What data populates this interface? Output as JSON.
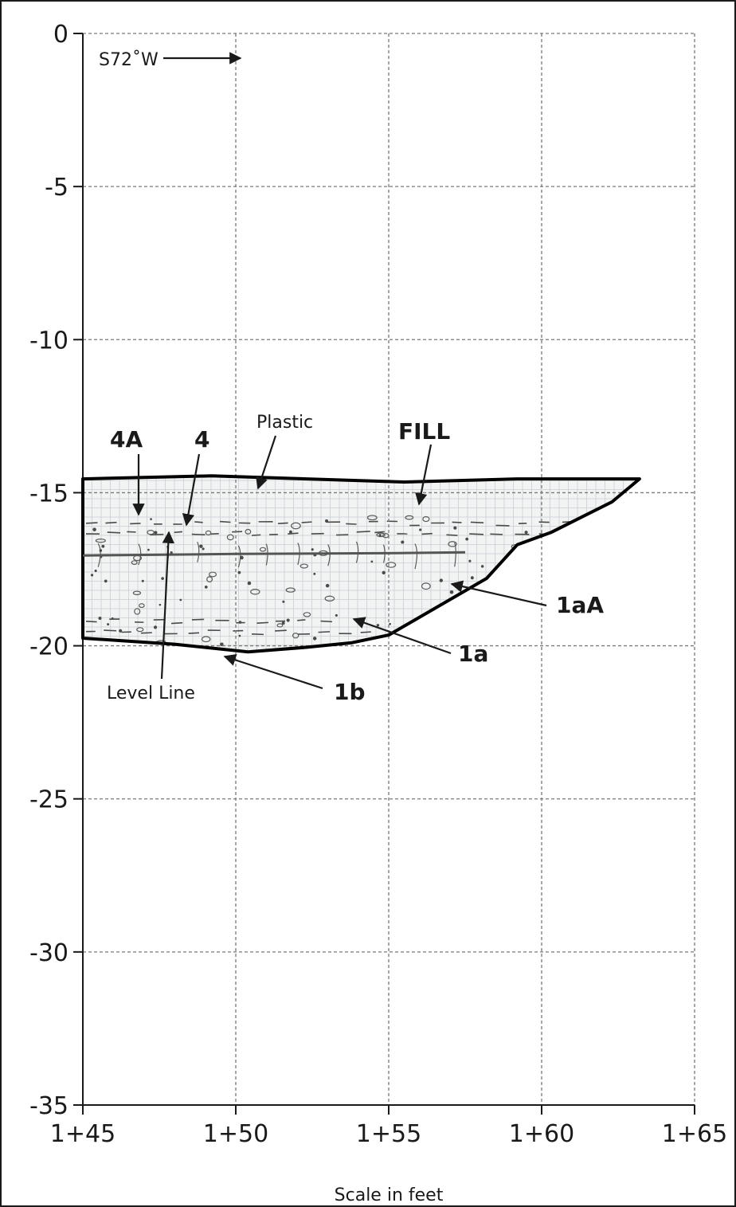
{
  "chart_data": {
    "type": "diagram",
    "y_axis": {
      "ticks": [
        "0",
        "-5",
        "-10",
        "-15",
        "-20",
        "-25",
        "-30",
        "-35"
      ],
      "values": [
        0,
        -5,
        -10,
        -15,
        -20,
        -25,
        -30,
        -35
      ],
      "range": [
        -35,
        0
      ]
    },
    "x_axis": {
      "ticks": [
        "1+45",
        "1+50",
        "1+55",
        "1+60",
        "1+65"
      ],
      "values": [
        145,
        150,
        155,
        160,
        165
      ],
      "range": [
        145,
        165
      ],
      "label": "Scale in feet"
    },
    "grid": true,
    "direction_label": "S72˚W",
    "units": [
      {
        "label": "FILL",
        "bold": true
      },
      {
        "label": "1aA",
        "bold": true
      },
      {
        "label": "1a",
        "bold": true
      },
      {
        "label": "1b",
        "bold": true
      },
      {
        "label": "4A",
        "bold": true
      },
      {
        "label": "4",
        "bold": true
      }
    ],
    "annotations": [
      {
        "label": "Plastic"
      },
      {
        "label": "Level Line"
      }
    ],
    "trench_outline": [
      [
        145.0,
        -14.55
      ],
      [
        149.2,
        -14.45
      ],
      [
        155.5,
        -14.65
      ],
      [
        159.2,
        -14.55
      ],
      [
        163.2,
        -14.55
      ],
      [
        162.3,
        -15.3
      ],
      [
        161.3,
        -15.8
      ],
      [
        160.3,
        -16.3
      ],
      [
        159.2,
        -16.7
      ],
      [
        158.2,
        -17.8
      ],
      [
        155.0,
        -19.65
      ],
      [
        153.8,
        -19.9
      ],
      [
        152.3,
        -20.05
      ],
      [
        150.4,
        -20.2
      ],
      [
        148.0,
        -19.95
      ],
      [
        145.0,
        -19.75
      ]
    ],
    "level_line_y": -17.0
  }
}
